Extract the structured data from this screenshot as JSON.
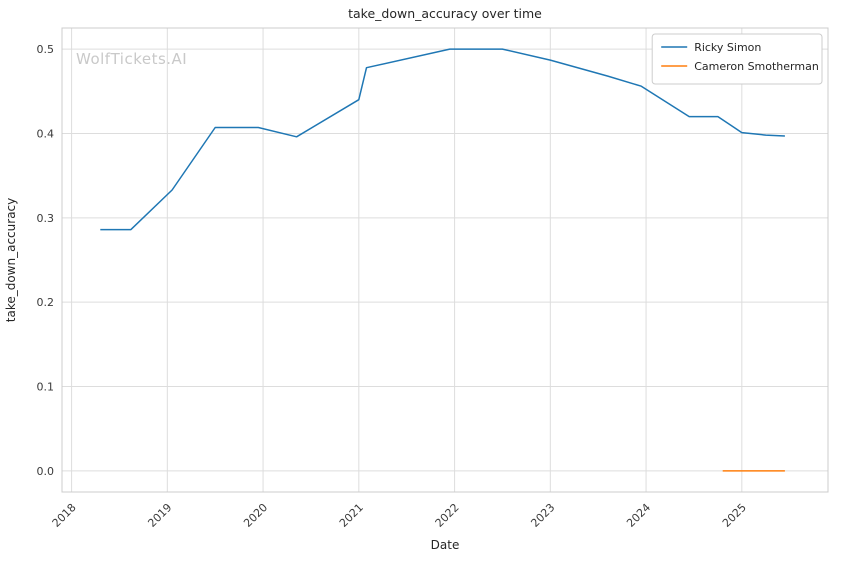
{
  "watermark": "WolfTickets.AI",
  "colors": {
    "grid": "#dddddd",
    "spine": "#cccccc",
    "text": "#262626",
    "tick_text": "#3a3a3a",
    "legend_border": "#cccccc",
    "legend_bg": "#ffffff",
    "watermark": "#c9c9c9"
  },
  "chart_data": {
    "type": "line",
    "title": "take_down_accuracy over time",
    "xlabel": "Date",
    "ylabel": "take_down_accuracy",
    "xlim": [
      2017.9,
      2025.9
    ],
    "ylim": [
      -0.025,
      0.525
    ],
    "x_ticks": [
      2018,
      2019,
      2020,
      2021,
      2022,
      2023,
      2024,
      2025
    ],
    "x_tick_labels": [
      "2018",
      "2019",
      "2020",
      "2021",
      "2022",
      "2023",
      "2024",
      "2025"
    ],
    "y_ticks": [
      0.0,
      0.1,
      0.2,
      0.3,
      0.4,
      0.5
    ],
    "y_tick_labels": [
      "0.0",
      "0.1",
      "0.2",
      "0.3",
      "0.4",
      "0.5"
    ],
    "grid": true,
    "legend_position": "top-right",
    "series": [
      {
        "name": "Ricky Simon",
        "color": "#1f77b4",
        "x": [
          2018.3,
          2018.62,
          2019.05,
          2019.5,
          2019.95,
          2020.35,
          2021.0,
          2021.08,
          2021.95,
          2022.5,
          2023.0,
          2023.6,
          2023.95,
          2024.45,
          2024.75,
          2025.0,
          2025.25,
          2025.45
        ],
        "y": [
          0.286,
          0.286,
          0.333,
          0.407,
          0.407,
          0.396,
          0.44,
          0.478,
          0.5,
          0.5,
          0.487,
          0.468,
          0.456,
          0.42,
          0.42,
          0.401,
          0.398,
          0.397
        ]
      },
      {
        "name": "Cameron Smotherman",
        "color": "#ff7f0e",
        "x": [
          2024.8,
          2025.45
        ],
        "y": [
          0.0,
          0.0
        ]
      }
    ]
  }
}
